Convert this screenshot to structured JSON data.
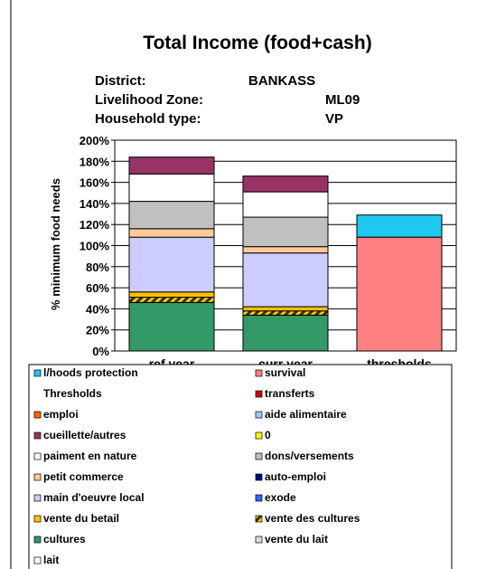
{
  "chart_data": {
    "type": "stacked_bar",
    "title": "Total Income (food+cash)",
    "info": [
      [
        "District:",
        "BANKASS"
      ],
      [
        "Livelihood Zone:",
        "ML09"
      ],
      [
        "Household type:",
        "VP"
      ]
    ],
    "y_label": "% minimum food needs",
    "categories": [
      "ref year",
      "curr year",
      "thresholds"
    ],
    "ylim": [
      0,
      200
    ],
    "yticks": [
      {
        "value": 0,
        "label": "0%"
      },
      {
        "value": 20,
        "label": "20%"
      },
      {
        "value": 40,
        "label": "40%"
      },
      {
        "value": 60,
        "label": "60%"
      },
      {
        "value": 80,
        "label": "80%"
      },
      {
        "value": 100,
        "label": "100%"
      },
      {
        "value": 120,
        "label": "120%"
      },
      {
        "value": 140,
        "label": "140%"
      },
      {
        "value": 160,
        "label": "160%"
      },
      {
        "value": 180,
        "label": "180%"
      },
      {
        "value": 200,
        "label": "200%"
      }
    ],
    "grid": true,
    "series": [
      {
        "name": "lait",
        "color": "#ffffff",
        "values": [
          0,
          0,
          0
        ]
      },
      {
        "name": "vente du lait",
        "color": "#d9d9d9",
        "values": [
          0,
          0,
          0
        ]
      },
      {
        "name": "cultures",
        "color": "#339966",
        "values": [
          46,
          34,
          0
        ]
      },
      {
        "name": "vente des cultures",
        "color": "#333300",
        "hatch": true,
        "values": [
          5,
          4,
          0
        ]
      },
      {
        "name": "vente du betail",
        "color": "#ffc000",
        "values": [
          5,
          4,
          0
        ]
      },
      {
        "name": "exode",
        "color": "#3366ff",
        "values": [
          0,
          0,
          0
        ]
      },
      {
        "name": "main d'oeuvre local",
        "color": "#ccccff",
        "values": [
          52,
          51,
          0
        ]
      },
      {
        "name": "auto-emploi",
        "color": "#000080",
        "values": [
          0,
          0,
          0
        ]
      },
      {
        "name": "petit commerce",
        "color": "#ffcc99",
        "values": [
          8,
          6,
          0
        ]
      },
      {
        "name": "dons/versements",
        "color": "#c0c0c0",
        "values": [
          26,
          28,
          0
        ]
      },
      {
        "name": "paiment en nature",
        "color": "#ffffff",
        "values": [
          26,
          24,
          0
        ]
      },
      {
        "name": "0",
        "color": "#ffff00",
        "values": [
          0,
          0,
          0
        ]
      },
      {
        "name": "cueillette/autres",
        "color": "#993366",
        "values": [
          16,
          15,
          0
        ]
      },
      {
        "name": "aide alimentaire",
        "color": "#99ccff",
        "values": [
          0,
          0,
          0
        ]
      },
      {
        "name": "emploi",
        "color": "#ff6600",
        "values": [
          0,
          0,
          0
        ]
      },
      {
        "name": "transferts",
        "color": "#cc0000",
        "values": [
          0,
          0,
          0
        ]
      },
      {
        "name": "Thresholds",
        "color": "none",
        "values": [
          0,
          0,
          0
        ]
      },
      {
        "name": "survival",
        "color": "#ff8080",
        "values": [
          0,
          0,
          108
        ]
      },
      {
        "name": "l/hoods protection",
        "color": "#1fc8f0",
        "values": [
          0,
          0,
          21
        ]
      }
    ]
  }
}
